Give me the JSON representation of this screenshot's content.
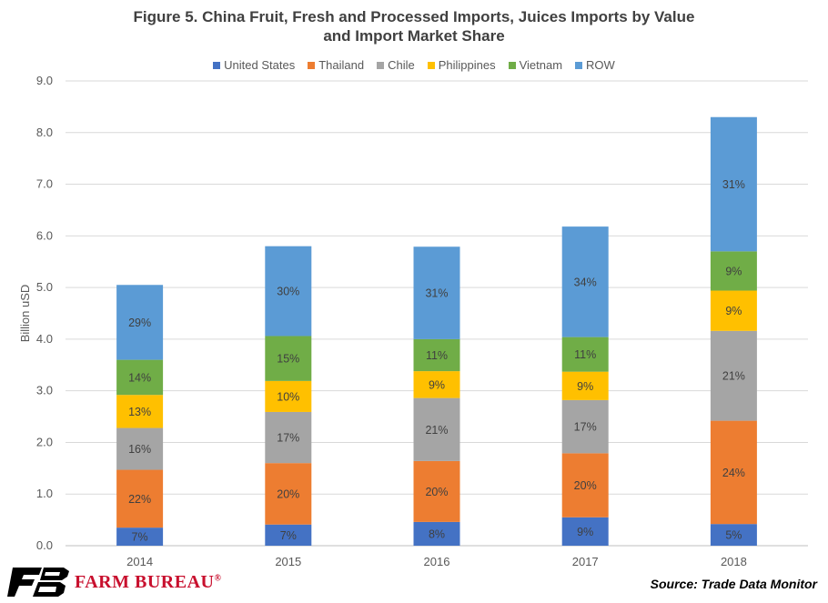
{
  "chart_data": {
    "type": "bar",
    "stacked": true,
    "title": "Figure 5. China Fruit, Fresh and Processed Imports, Juices Imports by Value",
    "title_line2": "and Import Market Share",
    "ylabel": "Billion uSD",
    "ylim": [
      0,
      9
    ],
    "yticks": [
      "0.0",
      "1.0",
      "2.0",
      "3.0",
      "4.0",
      "5.0",
      "6.0",
      "7.0",
      "8.0",
      "9.0"
    ],
    "grid": true,
    "legend_position": "top",
    "categories": [
      "2014",
      "2015",
      "2016",
      "2017",
      "2018"
    ],
    "series": [
      {
        "name": "United States",
        "color": "#4472C4",
        "values": [
          0.35,
          0.41,
          0.46,
          0.55,
          0.42
        ],
        "labels": [
          "7%",
          "7%",
          "8%",
          "9%",
          "5%"
        ]
      },
      {
        "name": "Thailand",
        "color": "#ED7D31",
        "values": [
          1.12,
          1.19,
          1.18,
          1.24,
          2.0
        ],
        "labels": [
          "22%",
          "20%",
          "20%",
          "20%",
          "24%"
        ]
      },
      {
        "name": "Chile",
        "color": "#A5A5A5",
        "values": [
          0.81,
          0.99,
          1.22,
          1.03,
          1.74
        ],
        "labels": [
          "16%",
          "17%",
          "21%",
          "17%",
          "21%"
        ]
      },
      {
        "name": "Philippines",
        "color": "#FFC000",
        "values": [
          0.64,
          0.6,
          0.52,
          0.55,
          0.78
        ],
        "labels": [
          "13%",
          "10%",
          "9%",
          "9%",
          "9%"
        ]
      },
      {
        "name": "Vietnam",
        "color": "#70AD47",
        "values": [
          0.68,
          0.87,
          0.62,
          0.67,
          0.76
        ],
        "labels": [
          "14%",
          "15%",
          "11%",
          "11%",
          "9%"
        ]
      },
      {
        "name": "ROW",
        "color": "#5B9BD5",
        "values": [
          1.45,
          1.74,
          1.79,
          2.14,
          2.6
        ],
        "labels": [
          "29%",
          "30%",
          "31%",
          "34%",
          "31%"
        ]
      }
    ]
  },
  "footer": {
    "brand_name": "FARM BUREAU",
    "brand_mark": "®",
    "brand_color": "#c8102e",
    "source": "Source: Trade Data Monitor"
  }
}
